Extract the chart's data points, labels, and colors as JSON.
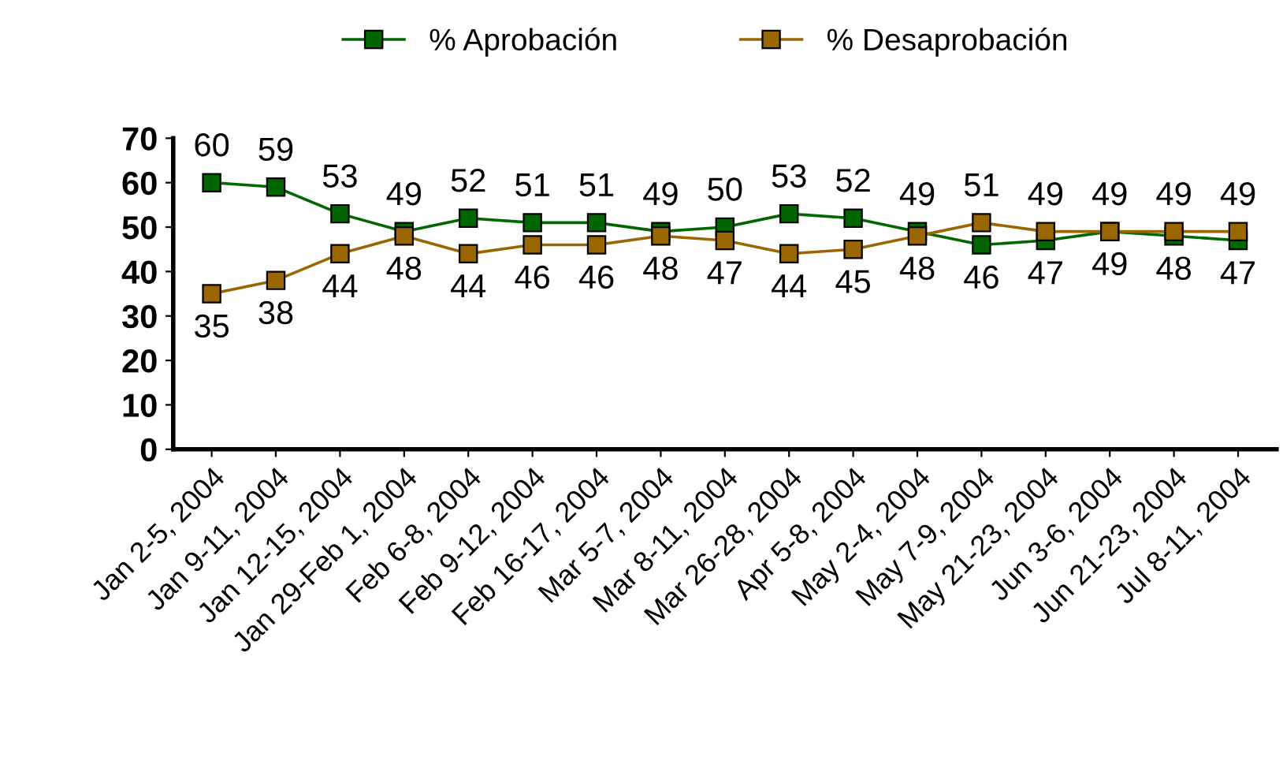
{
  "chart_data": {
    "type": "line",
    "categories": [
      "Jan 2-5, 2004",
      "Jan 9-11, 2004",
      "Jan 12-15, 2004",
      "Jan 29-Feb 1, 2004",
      "Feb 6-8, 2004",
      "Feb 9-12, 2004",
      "Feb 16-17, 2004",
      "Mar 5-7, 2004",
      "Mar 8-11, 2004",
      "Mar 26-28, 2004",
      "Apr 5-8, 2004",
      "May 2-4, 2004",
      "May 7-9, 2004",
      "May 21-23, 2004",
      "Jun 3-6, 2004",
      "Jun 21-23, 2004",
      "Jul 8-11, 2004"
    ],
    "series": [
      {
        "name": "% Aprobación",
        "color": "#006600",
        "values": [
          60,
          59,
          53,
          49,
          52,
          51,
          51,
          49,
          50,
          53,
          52,
          49,
          46,
          47,
          49,
          48,
          47
        ]
      },
      {
        "name": "% Desaprobación",
        "color": "#996600",
        "values": [
          35,
          38,
          44,
          48,
          44,
          46,
          46,
          48,
          47,
          44,
          45,
          48,
          51,
          49,
          49,
          49,
          49
        ]
      }
    ],
    "ylim": [
      0,
      70
    ],
    "yticks": [
      0,
      10,
      20,
      30,
      40,
      50,
      60,
      70
    ],
    "marker": "square",
    "line_style": "solid",
    "grid": false,
    "legend": "top",
    "data_labels": true
  }
}
